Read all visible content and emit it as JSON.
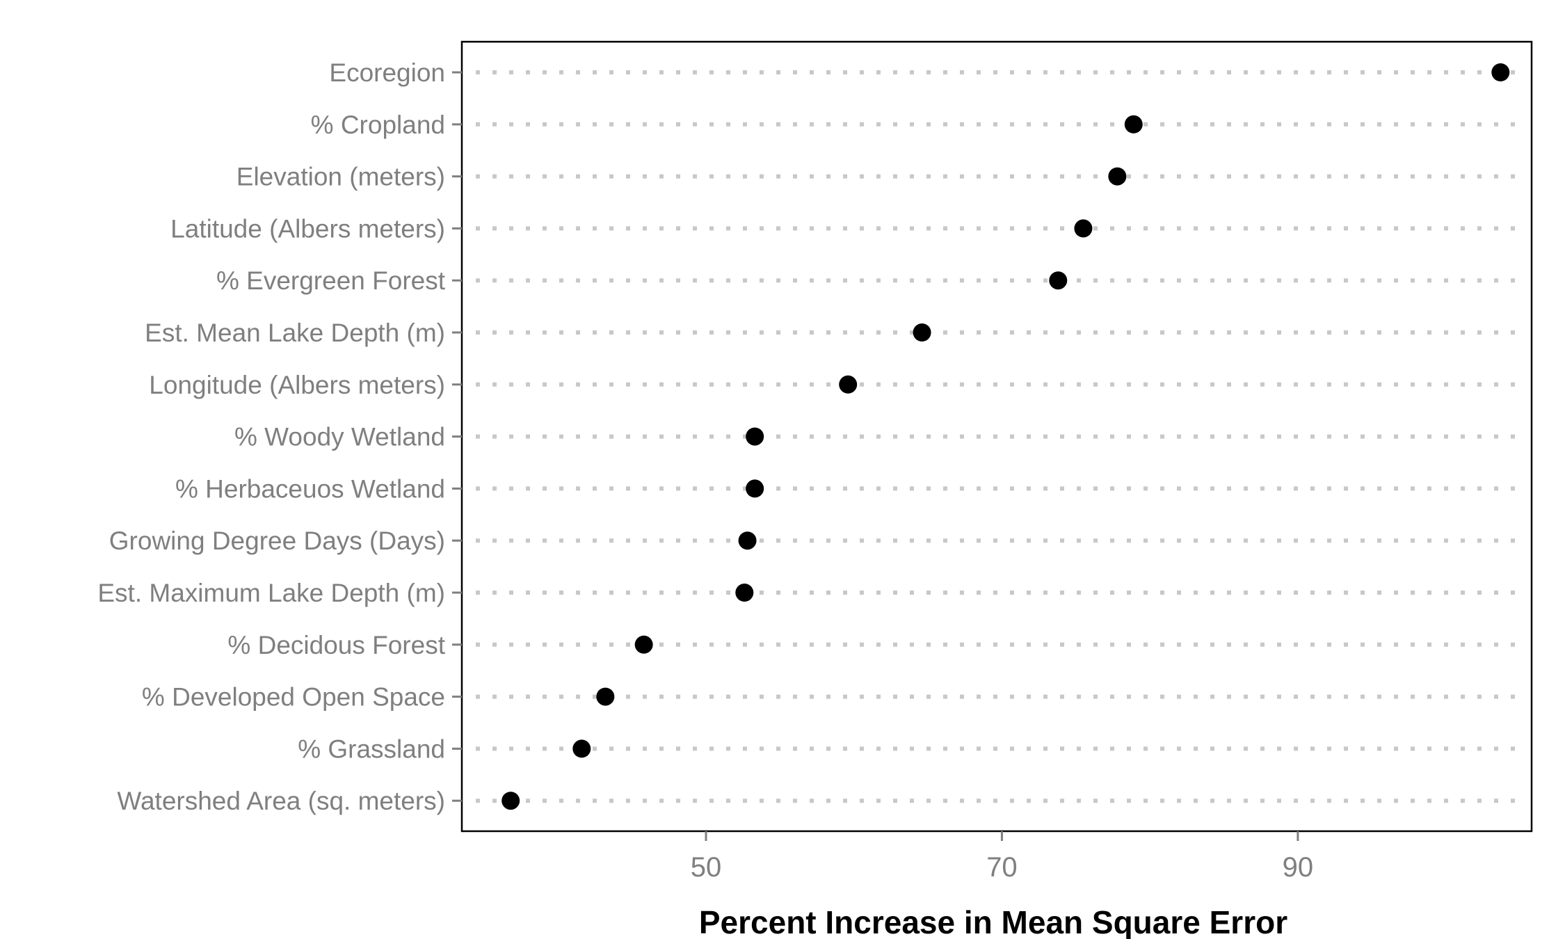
{
  "chart_data": {
    "type": "scatter",
    "variant": "dot-plot",
    "title": "",
    "xlabel": "Percent Increase in Mean Square Error",
    "ylabel": "",
    "xlim": [
      33.5,
      105.8
    ],
    "xticks": [
      50,
      70,
      90
    ],
    "categories": [
      "Ecoregion",
      "% Cropland",
      "Elevation (meters)",
      "Latitude  (Albers meters)",
      "% Evergreen Forest",
      "Est. Mean Lake Depth (m)",
      "Longitude (Albers meters)",
      "% Woody Wetland",
      "% Herbaceuos Wetland",
      "Growing Degree Days (Days)",
      "Est. Maximum Lake Depth (m)",
      "% Decidous Forest",
      "% Developed Open Space",
      "% Grassland",
      "Watershed Area (sq. meters)"
    ],
    "values": [
      103.7,
      78.9,
      77.8,
      75.5,
      73.8,
      64.6,
      59.6,
      53.3,
      53.3,
      52.8,
      52.6,
      45.8,
      43.2,
      41.6,
      36.8
    ],
    "grid": "dotted horizontal lines per category",
    "legend": "none",
    "colors": {
      "points": "#000000",
      "grid": "#c8c8c8",
      "labels": "#7f7f7f",
      "title": "#000000",
      "frame": "#000000"
    }
  }
}
